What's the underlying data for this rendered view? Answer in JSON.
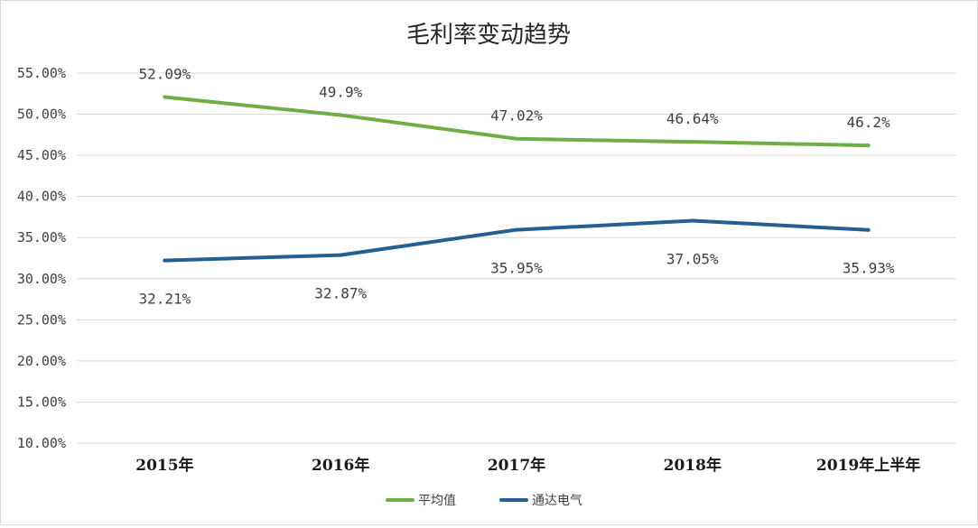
{
  "chart_data": {
    "type": "line",
    "title": "毛利率变动趋势",
    "categories": [
      "2015年",
      "2016年",
      "2017年",
      "2018年",
      "2019年上半年"
    ],
    "y_tick_labels": [
      "55.00%",
      "50.00%",
      "45.00%",
      "40.00%",
      "35.00%",
      "30.00%",
      "25.00%",
      "20.00%",
      "15.00%",
      "10.00%"
    ],
    "ylim": [
      10,
      55
    ],
    "ytick_step": 5,
    "grid": true,
    "legend_position": "bottom",
    "series": [
      {
        "name": "平均值",
        "color": "#70ad47",
        "values": [
          52.09,
          49.9,
          47.02,
          46.64,
          46.2
        ],
        "labels": [
          "52.09%",
          "49.9%",
          "47.02%",
          "46.64%",
          "46.2%"
        ],
        "label_position": "above"
      },
      {
        "name": "通达电气",
        "color": "#255e91",
        "values": [
          32.21,
          32.87,
          35.95,
          37.05,
          35.93
        ],
        "labels": [
          "32.21%",
          "32.87%",
          "35.95%",
          "37.05%",
          "35.93%"
        ],
        "label_position": "below"
      }
    ]
  }
}
